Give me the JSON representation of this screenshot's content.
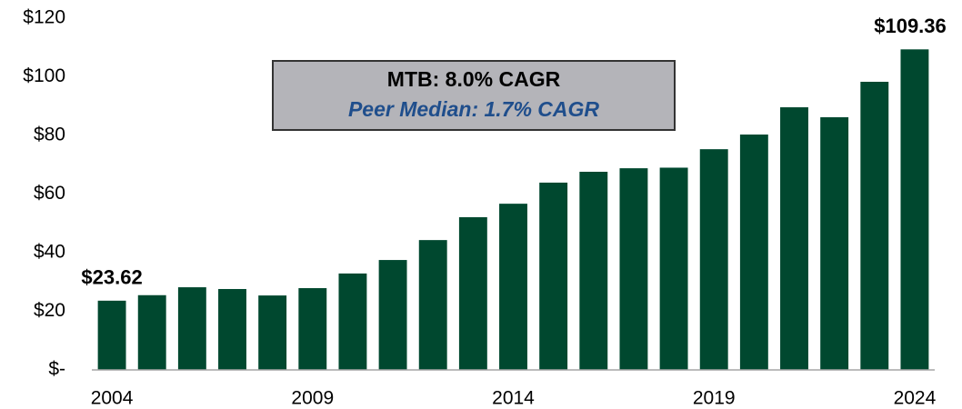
{
  "chart_data": {
    "type": "bar",
    "categories": [
      "2004",
      null,
      null,
      null,
      null,
      "2009",
      null,
      null,
      null,
      null,
      "2014",
      null,
      null,
      null,
      null,
      "2019",
      null,
      null,
      null,
      null,
      "2024"
    ],
    "values": [
      23.62,
      25.5,
      28.2,
      27.6,
      25.4,
      27.9,
      32.9,
      37.5,
      44.3,
      52.1,
      56.7,
      63.9,
      67.6,
      68.8,
      69.0,
      75.3,
      80.3,
      89.6,
      86.2,
      98.3,
      109.36
    ],
    "value_labels": [
      "$23.62",
      null,
      null,
      null,
      null,
      null,
      null,
      null,
      null,
      null,
      null,
      null,
      null,
      null,
      null,
      null,
      null,
      null,
      null,
      null,
      "$109.36"
    ],
    "color": "#00482f",
    "ylim": [
      0,
      120
    ],
    "yticks": [
      {
        "value": 0,
        "label": "$-"
      },
      {
        "value": 20,
        "label": "$20"
      },
      {
        "value": 40,
        "label": "$40"
      },
      {
        "value": 60,
        "label": "$60"
      },
      {
        "value": 80,
        "label": "$80"
      },
      {
        "value": 100,
        "label": "$100"
      },
      {
        "value": 120,
        "label": "$120"
      }
    ],
    "grid": false,
    "annotations": [
      "MTB: 8.0% CAGR",
      "Peer Median: 1.7% CAGR"
    ]
  }
}
